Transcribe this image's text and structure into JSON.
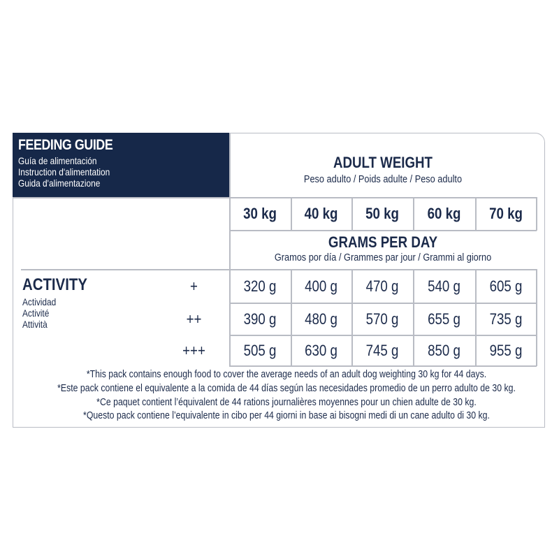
{
  "header": {
    "title": "FEEDING GUIDE",
    "subtitles": [
      "Guía de alimentación",
      "Instruction d'alimentation",
      "Guida d'alimentazione"
    ]
  },
  "adult_weight": {
    "title": "ADULT WEIGHT",
    "subtitle": "Peso adulto / Poids adulte / Peso adulto"
  },
  "weights": [
    "30 kg",
    "40 kg",
    "50 kg",
    "60 kg",
    "70 kg"
  ],
  "grams": {
    "title": "GRAMS PER DAY",
    "subtitle": "Gramos por día / Grammes par jour / Grammi al giorno"
  },
  "activity": {
    "title": "ACTIVITY",
    "subtitles": [
      "Actividad",
      "Activité",
      "Attività"
    ]
  },
  "rows": [
    {
      "level": "+",
      "values": [
        "320 g",
        "400 g",
        "470 g",
        "540 g",
        "605 g"
      ]
    },
    {
      "level": "++",
      "values": [
        "390 g",
        "480 g",
        "570 g",
        "655 g",
        "735 g"
      ]
    },
    {
      "level": "+++",
      "values": [
        "505 g",
        "630 g",
        "745 g",
        "850 g",
        "955 g"
      ]
    }
  ],
  "notes": [
    "*This pack contains enough food to cover the average needs of an adult dog weighting 30 kg for 44 days.",
    "*Este pack contiene el equivalente a la comida de 44 días según las necesidades promedio de un perro adulto de 30 kg.",
    "*Ce paquet contient l’équivalent de 44 rations journalières moyennes pour un chien adulte de 30 kg.",
    "*Questo pack contiene l’equivalente in cibo per 44 giorni in base ai bisogni medi di un cane adulto di 30 kg."
  ],
  "colors": {
    "navy": "#162849",
    "text": "#1b2a4a",
    "lines": "#b9bcc4"
  }
}
